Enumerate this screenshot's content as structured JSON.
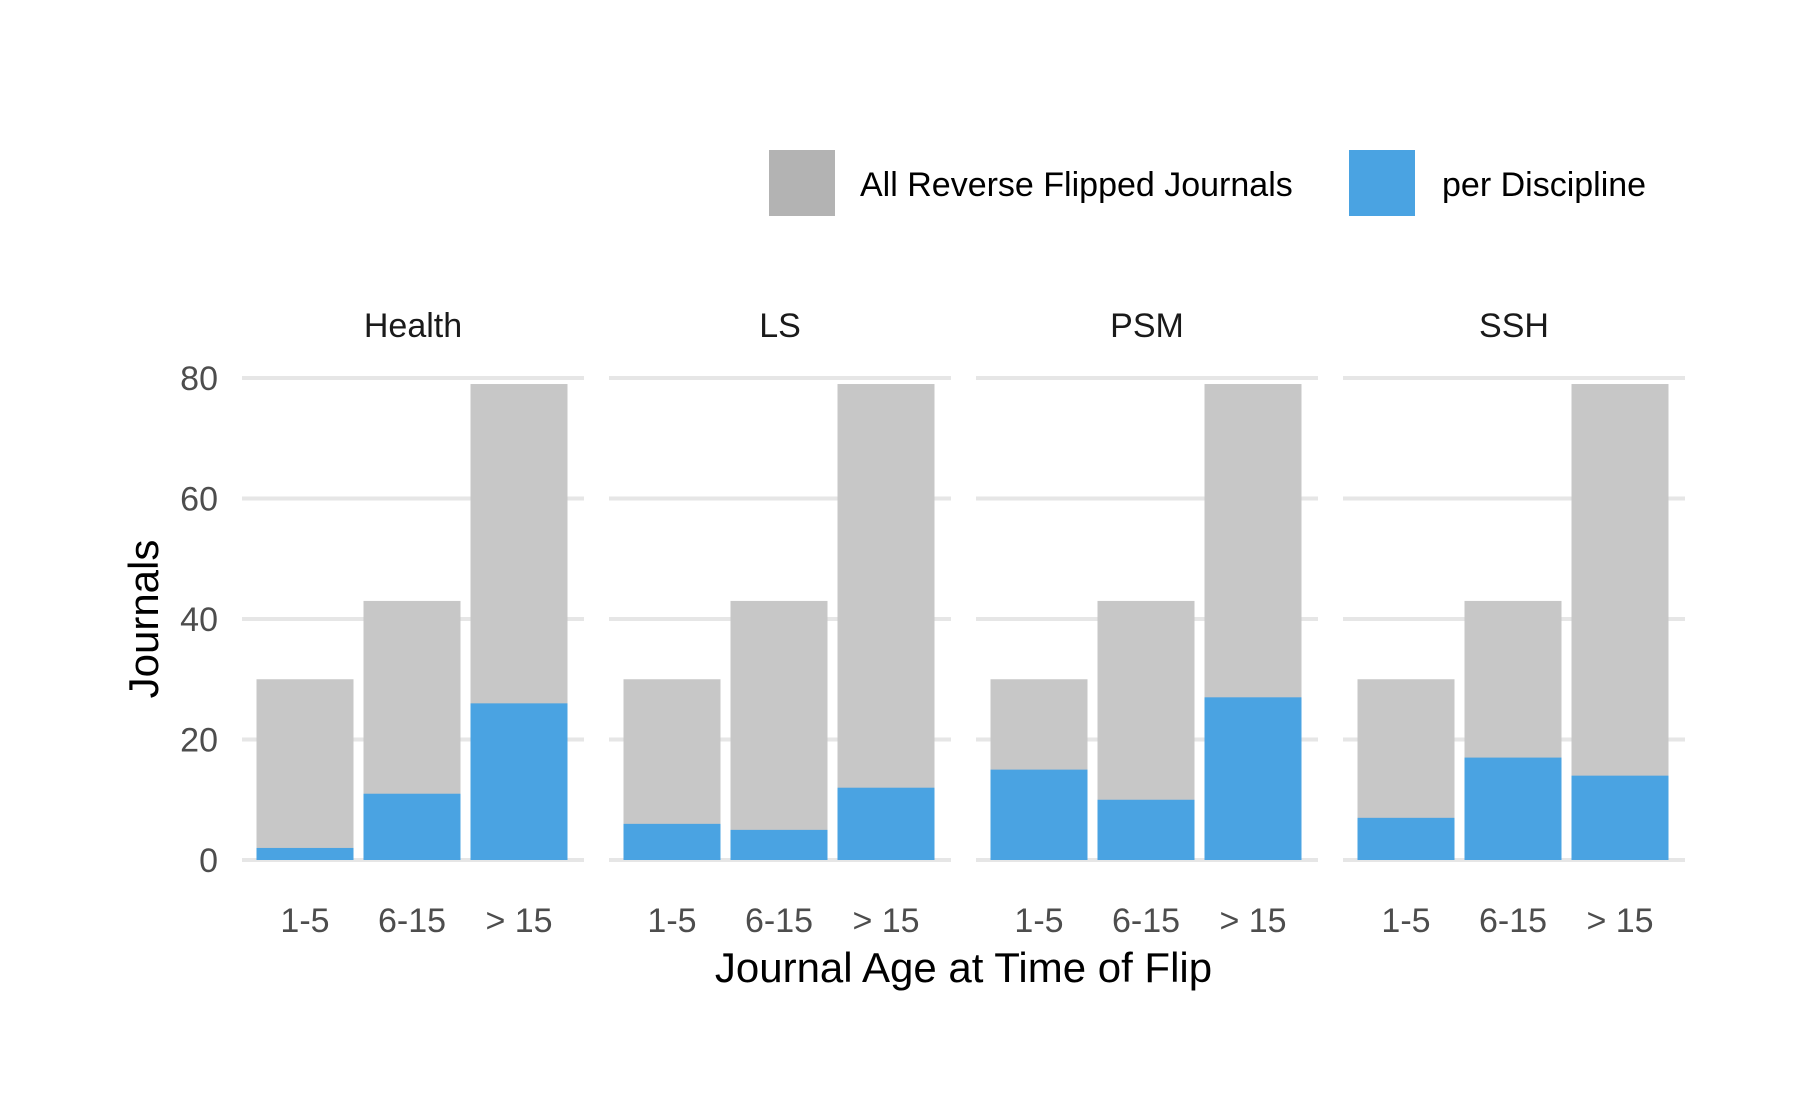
{
  "chart_data": {
    "type": "bar",
    "xlabel": "Journal Age at Time of Flip",
    "ylabel": "Journals",
    "ylim": [
      0,
      80
    ],
    "y_ticks": [
      0,
      20,
      40,
      60,
      80
    ],
    "grid": true,
    "legend_position": "top-right",
    "categories": [
      "1-5",
      "6-15",
      "> 15"
    ],
    "legend": [
      {
        "name": "All Reverse Flipped Journals",
        "color": "#b3b3b3"
      },
      {
        "name": "per Discipline",
        "color": "#4aa3e2"
      }
    ],
    "panels": [
      {
        "facet": "Health",
        "series": [
          {
            "name": "All Reverse Flipped Journals",
            "values": [
              30,
              43,
              79
            ]
          },
          {
            "name": "per Discipline",
            "values": [
              2,
              11,
              26
            ]
          }
        ]
      },
      {
        "facet": "LS",
        "series": [
          {
            "name": "All Reverse Flipped Journals",
            "values": [
              30,
              43,
              79
            ]
          },
          {
            "name": "per Discipline",
            "values": [
              6,
              5,
              12
            ]
          }
        ]
      },
      {
        "facet": "PSM",
        "series": [
          {
            "name": "All Reverse Flipped Journals",
            "values": [
              30,
              43,
              79
            ]
          },
          {
            "name": "per Discipline",
            "values": [
              15,
              10,
              27
            ]
          }
        ]
      },
      {
        "facet": "SSH",
        "series": [
          {
            "name": "All Reverse Flipped Journals",
            "values": [
              30,
              43,
              79
            ]
          },
          {
            "name": "per Discipline",
            "values": [
              7,
              17,
              14
            ]
          }
        ]
      }
    ]
  },
  "colors": {
    "all_bar_fill": "#c7c7c7",
    "grid": "#e6e6e6",
    "tick_text": "#4d4d4d"
  }
}
